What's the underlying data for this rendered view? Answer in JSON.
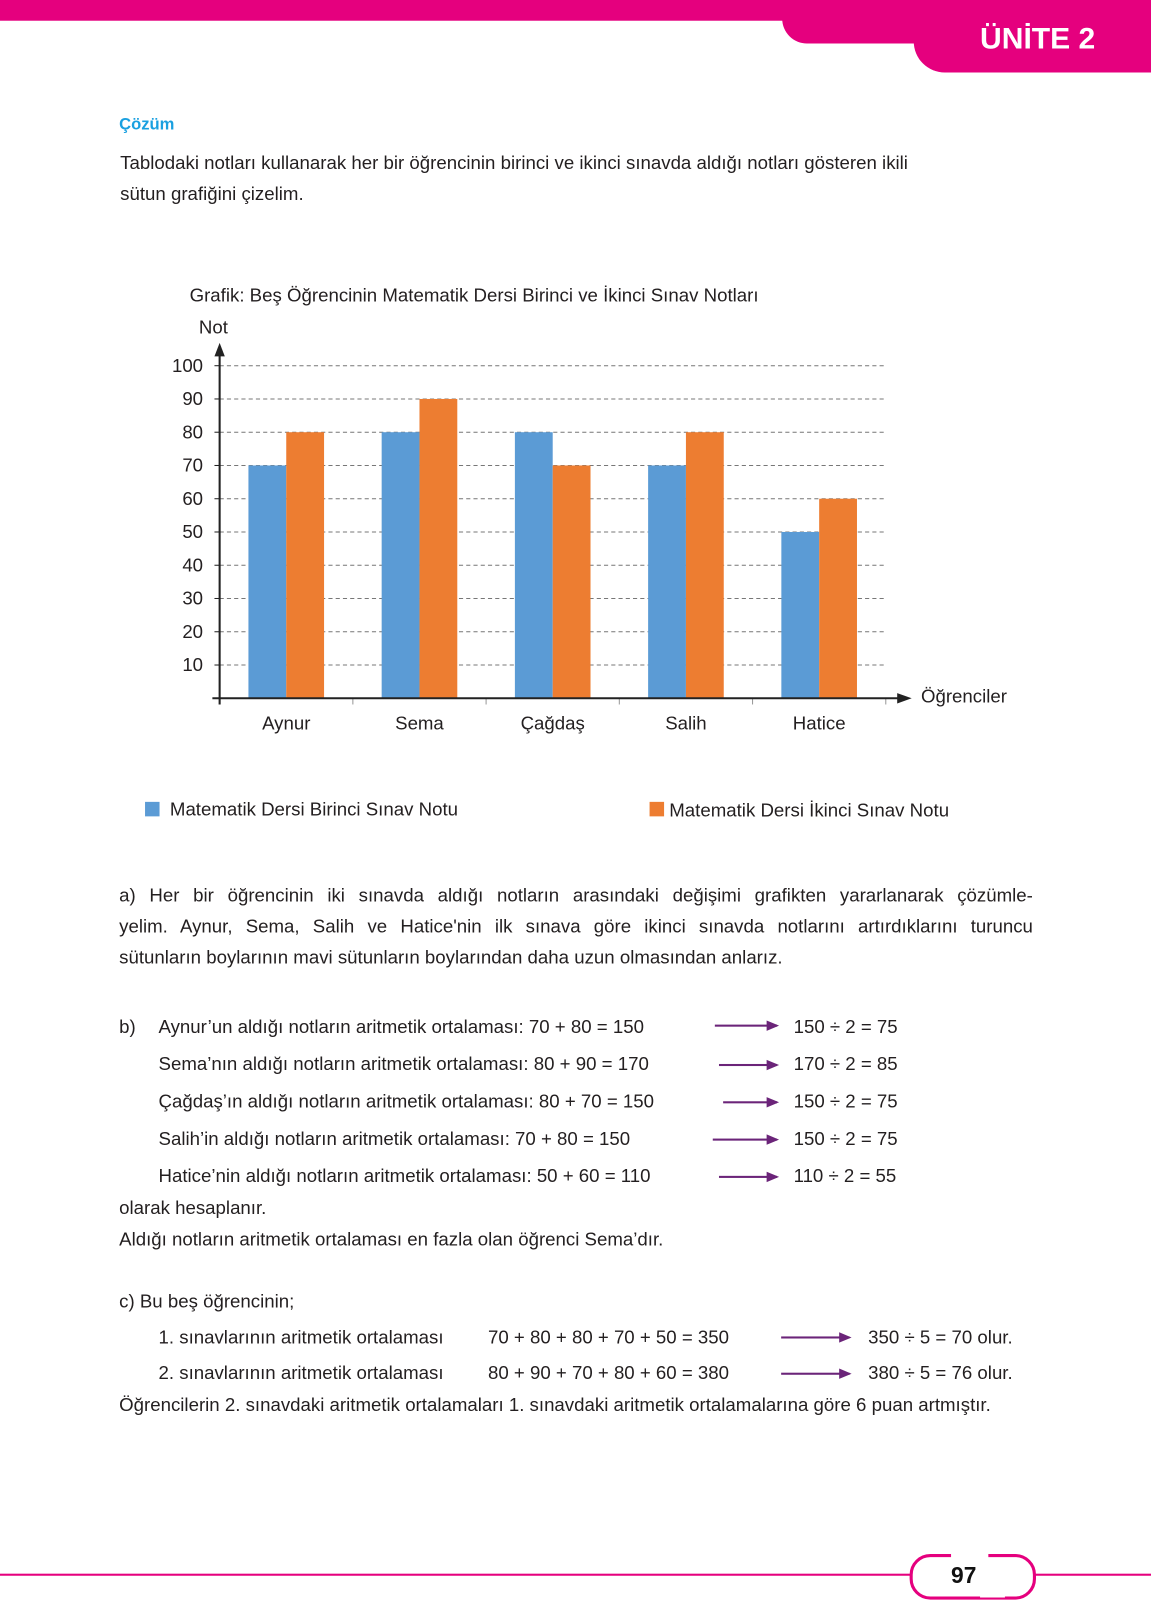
{
  "header": {
    "unit_label": "ÜNİTE 2",
    "accent_color": "#e5007e"
  },
  "solution": {
    "heading": "Çözüm",
    "intro_lines": [
      "Tablodaki notları kullanarak her bir öğrencinin birinci ve ikinci sınavda aldığı notları gösteren ikili",
      "sütun grafiğini çizelim."
    ]
  },
  "chart_data": {
    "type": "bar",
    "title": "Grafik: Beş Öğrencinin Matematik Dersi Birinci ve İkinci Sınav Notları",
    "xlabel": "Öğrenciler",
    "ylabel": "Not",
    "categories": [
      "Aynur",
      "Sema",
      "Çağdaş",
      "Salih",
      "Hatice"
    ],
    "yticks": [
      "10",
      "20",
      "30",
      "40",
      "50",
      "60",
      "70",
      "80",
      "90",
      "100"
    ],
    "ylim": [
      0,
      100
    ],
    "grid": true,
    "legend_position": "bottom",
    "series": [
      {
        "name": "Matematik Dersi Birinci Sınav Notu",
        "color": "#5b9bd5",
        "values": [
          70,
          80,
          80,
          70,
          50
        ]
      },
      {
        "name": "Matematik Dersi İkinci Sınav Notu",
        "color": "#ed7d31",
        "values": [
          80,
          90,
          70,
          80,
          60
        ]
      }
    ]
  },
  "part_a": {
    "lines": [
      "a) Her bir öğrencinin iki sınavda aldığı notların arasındaki değişimi grafikten yararlanarak çözümle-",
      "yelim. Aynur, Sema, Salih ve Hatice'nin ilk sınava göre ikinci sınavda notlarını artırdıklarını turuncu",
      "sütunların boylarının mavi sütunların boylarından daha uzun olmasından anlarız."
    ]
  },
  "part_b": {
    "label": "b)",
    "rows": [
      {
        "text": "Aynur’un aldığı notların aritmetik ortalaması: 70 + 80 = 150",
        "result": "150 ÷ 2 = 75"
      },
      {
        "text": "Sema’nın aldığı notların aritmetik ortalaması: 80 + 90 = 170",
        "result": "170 ÷ 2 = 85"
      },
      {
        "text": "Çağdaş’ın aldığı notların aritmetik ortalaması: 80 + 70 = 150",
        "result": "150 ÷ 2 = 75"
      },
      {
        "text": "Salih’in aldığı notların aritmetik ortalaması: 70 + 80 = 150",
        "result": "150 ÷ 2 = 75"
      },
      {
        "text": "Hatice’nin aldığı notların aritmetik ortalaması: 50 + 60 = 110",
        "result": "110 ÷ 2 = 55"
      }
    ],
    "after": [
      "olarak hesaplanır.",
      "Aldığı notların aritmetik ortalaması en fazla olan öğrenci Sema’dır."
    ]
  },
  "part_c": {
    "intro": "c) Bu beş öğrencinin;",
    "rows": [
      {
        "label": "1. sınavlarının aritmetik ortalaması",
        "sum": "70 + 80 + 80 + 70 + 50 = 350",
        "result": "350 ÷ 5 = 70 olur."
      },
      {
        "label": "2. sınavlarının aritmetik ortalaması",
        "sum": "80 + 90 + 70 + 80 + 60 = 380",
        "result": "380 ÷ 5 = 76 olur."
      }
    ],
    "conclusion": "Öğrencilerin 2. sınavdaki aritmetik ortalamaları 1. sınavdaki aritmetik ortalamalarına göre 6 puan artmıştır."
  },
  "footer": {
    "page_number": "97"
  }
}
